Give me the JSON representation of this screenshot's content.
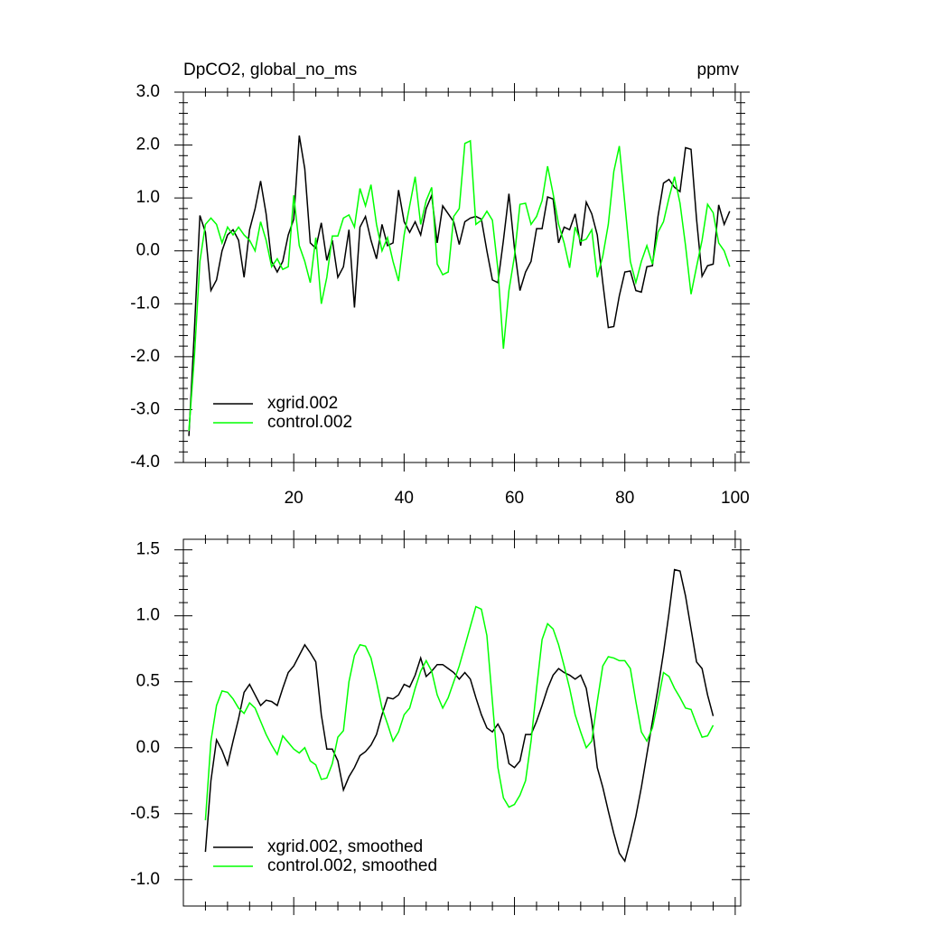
{
  "chart_data": [
    {
      "type": "line",
      "title": "DpCO2, global_no_ms",
      "units": "ppmv",
      "x": [
        1,
        2,
        3,
        4,
        5,
        6,
        7,
        8,
        9,
        10,
        11,
        12,
        13,
        14,
        15,
        16,
        17,
        18,
        19,
        20,
        21,
        22,
        23,
        24,
        25,
        26,
        27,
        28,
        29,
        30,
        31,
        32,
        33,
        34,
        35,
        36,
        37,
        38,
        39,
        40,
        41,
        42,
        43,
        44,
        45,
        46,
        47,
        48,
        49,
        50,
        51,
        52,
        53,
        54,
        55,
        56,
        57,
        58,
        59,
        60,
        61,
        62,
        63,
        64,
        65,
        66,
        67,
        68,
        69,
        70,
        71,
        72,
        73,
        74,
        75,
        76,
        77,
        78,
        79,
        80,
        81,
        82,
        83,
        84,
        85,
        86,
        87,
        88,
        89,
        90,
        91,
        92,
        93,
        94,
        95,
        96,
        97,
        98,
        99
      ],
      "series": [
        {
          "name": "xgrid.002",
          "color": "#000000",
          "values": [
            -3.5,
            -1.5,
            0.67,
            0.35,
            -0.75,
            -0.55,
            0.0,
            0.3,
            0.4,
            0.2,
            -0.5,
            0.4,
            0.8,
            1.32,
            0.7,
            -0.2,
            -0.4,
            -0.2,
            0.3,
            0.6,
            2.18,
            1.55,
            0.15,
            0.05,
            0.53,
            -0.18,
            0.2,
            -0.5,
            -0.3,
            0.4,
            -1.07,
            0.45,
            0.65,
            0.2,
            -0.15,
            0.5,
            0.1,
            0.15,
            1.15,
            0.55,
            0.35,
            0.55,
            0.3,
            0.8,
            1.05,
            0.15,
            0.85,
            0.7,
            0.55,
            0.12,
            0.55,
            0.62,
            0.65,
            0.6,
            0.0,
            -0.55,
            -0.6,
            0.2,
            1.08,
            0.05,
            -0.75,
            -0.4,
            -0.2,
            0.42,
            0.42,
            1.02,
            0.98,
            0.15,
            0.45,
            0.4,
            0.7,
            0.1,
            0.92,
            0.7,
            0.3,
            -0.6,
            -1.45,
            -1.43,
            -0.85,
            -0.4,
            -0.38,
            -0.75,
            -0.78,
            -0.3,
            -0.28,
            0.65,
            1.28,
            1.35,
            1.2,
            1.12,
            1.95,
            1.92,
            0.6,
            -0.48,
            -0.28,
            -0.25,
            0.87,
            0.5,
            0.75
          ]
        },
        {
          "name": "control.002",
          "color": "#00ff00",
          "values": [
            -3.4,
            -2.0,
            -0.2,
            0.5,
            0.62,
            0.5,
            0.15,
            0.45,
            0.3,
            0.45,
            0.3,
            0.2,
            0.0,
            0.55,
            0.2,
            -0.3,
            -0.15,
            -0.35,
            -0.3,
            1.05,
            0.1,
            -0.2,
            -0.6,
            0.25,
            -1.0,
            -0.5,
            0.28,
            0.28,
            0.62,
            0.68,
            0.45,
            1.18,
            0.85,
            1.25,
            0.5,
            0.0,
            0.25,
            -0.2,
            -0.57,
            0.3,
            0.85,
            1.4,
            0.5,
            0.95,
            1.2,
            -0.25,
            -0.45,
            -0.4,
            0.65,
            0.8,
            2.03,
            2.08,
            0.5,
            0.58,
            0.75,
            0.58,
            -0.35,
            -1.85,
            -0.75,
            -0.1,
            0.88,
            0.9,
            0.5,
            0.65,
            0.95,
            1.6,
            1.08,
            0.5,
            0.15,
            -0.32,
            0.45,
            0.18,
            0.22,
            0.4,
            -0.5,
            -0.1,
            0.5,
            1.5,
            1.98,
            0.9,
            -0.2,
            -0.6,
            -0.2,
            0.1,
            -0.25,
            0.35,
            0.55,
            1.0,
            1.4,
            0.9,
            0.1,
            -0.82,
            -0.3,
            0.2,
            0.88,
            0.72,
            0.15,
            0.0,
            -0.3
          ]
        }
      ],
      "xlim": [
        0,
        101
      ],
      "xticks": [
        20,
        40,
        60,
        80,
        100
      ],
      "xtick_labels": true,
      "ylim": [
        -4,
        3
      ],
      "yticks": [
        {
          "value": -4,
          "label": "-4.0"
        },
        {
          "value": -3,
          "label": "-3.0"
        },
        {
          "value": -2,
          "label": "-2.0"
        },
        {
          "value": -1,
          "label": "-1.0"
        },
        {
          "value": 0,
          "label": "0.0"
        },
        {
          "value": 1,
          "label": "1.0"
        },
        {
          "value": 2,
          "label": "2.0"
        },
        {
          "value": 3,
          "label": "3.0"
        }
      ],
      "legend": "lower left"
    },
    {
      "type": "line",
      "x": [
        4,
        5,
        6,
        7,
        8,
        9,
        10,
        11,
        12,
        13,
        14,
        15,
        16,
        17,
        18,
        19,
        20,
        21,
        22,
        23,
        24,
        25,
        26,
        27,
        28,
        29,
        30,
        31,
        32,
        33,
        34,
        35,
        36,
        37,
        38,
        39,
        40,
        41,
        42,
        43,
        44,
        45,
        46,
        47,
        48,
        49,
        50,
        51,
        52,
        53,
        54,
        55,
        56,
        57,
        58,
        59,
        60,
        61,
        62,
        63,
        64,
        65,
        66,
        67,
        68,
        69,
        70,
        71,
        72,
        73,
        74,
        75,
        76,
        77,
        78,
        79,
        80,
        81,
        82,
        83,
        84,
        85,
        86,
        87,
        88,
        89,
        90,
        91,
        92,
        93,
        94,
        95,
        96
      ],
      "series": [
        {
          "name": "xgrid.002, smoothed",
          "color": "#000000",
          "values": [
            -0.79,
            -0.25,
            0.06,
            -0.02,
            -0.13,
            0.05,
            0.22,
            0.42,
            0.48,
            0.4,
            0.32,
            0.36,
            0.35,
            0.32,
            0.45,
            0.57,
            0.62,
            0.7,
            0.78,
            0.72,
            0.65,
            0.25,
            -0.01,
            -0.01,
            -0.1,
            -0.32,
            -0.22,
            -0.15,
            -0.06,
            -0.03,
            0.02,
            0.1,
            0.25,
            0.38,
            0.37,
            0.4,
            0.48,
            0.46,
            0.55,
            0.68,
            0.54,
            0.58,
            0.63,
            0.63,
            0.6,
            0.57,
            0.52,
            0.57,
            0.52,
            0.38,
            0.25,
            0.15,
            0.12,
            0.18,
            0.1,
            -0.12,
            -0.15,
            -0.1,
            0.1,
            0.1,
            0.2,
            0.32,
            0.45,
            0.55,
            0.6,
            0.57,
            0.55,
            0.52,
            0.55,
            0.45,
            0.2,
            -0.15,
            -0.3,
            -0.48,
            -0.65,
            -0.8,
            -0.86,
            -0.7,
            -0.52,
            -0.3,
            -0.05,
            0.2,
            0.45,
            0.72,
            1.02,
            1.35,
            1.34,
            1.15,
            0.9,
            0.65,
            0.6,
            0.4,
            0.24
          ]
        },
        {
          "name": "control.002, smoothed",
          "color": "#00ff00",
          "values": [
            -0.55,
            0.05,
            0.32,
            0.43,
            0.42,
            0.37,
            0.3,
            0.26,
            0.34,
            0.3,
            0.2,
            0.1,
            0.02,
            -0.05,
            0.09,
            0.04,
            -0.01,
            -0.04,
            0.0,
            -0.1,
            -0.13,
            -0.24,
            -0.23,
            -0.12,
            0.08,
            0.13,
            0.5,
            0.7,
            0.78,
            0.77,
            0.68,
            0.5,
            0.3,
            0.18,
            0.05,
            0.12,
            0.25,
            0.3,
            0.45,
            0.58,
            0.66,
            0.58,
            0.4,
            0.3,
            0.38,
            0.5,
            0.62,
            0.77,
            0.92,
            1.07,
            1.05,
            0.85,
            0.35,
            -0.15,
            -0.38,
            -0.45,
            -0.43,
            -0.36,
            -0.25,
            0.05,
            0.45,
            0.82,
            0.94,
            0.9,
            0.78,
            0.62,
            0.45,
            0.25,
            0.12,
            0.0,
            0.05,
            0.35,
            0.62,
            0.69,
            0.68,
            0.66,
            0.66,
            0.6,
            0.35,
            0.12,
            0.05,
            0.15,
            0.35,
            0.57,
            0.54,
            0.45,
            0.38,
            0.3,
            0.29,
            0.18,
            0.08,
            0.09,
            0.17
          ]
        }
      ],
      "xlim": [
        0,
        101
      ],
      "xticks": [
        20,
        40,
        60,
        80,
        100
      ],
      "xtick_labels": false,
      "ylim": [
        -1.2,
        1.58
      ],
      "yticks": [
        {
          "value": -1,
          "label": "-1.0"
        },
        -0.5,
        {
          "value": 0,
          "label": "0.0"
        },
        0.5,
        {
          "value": 1,
          "label": "1.0"
        },
        1.5
      ],
      "legend": "lower left"
    }
  ]
}
